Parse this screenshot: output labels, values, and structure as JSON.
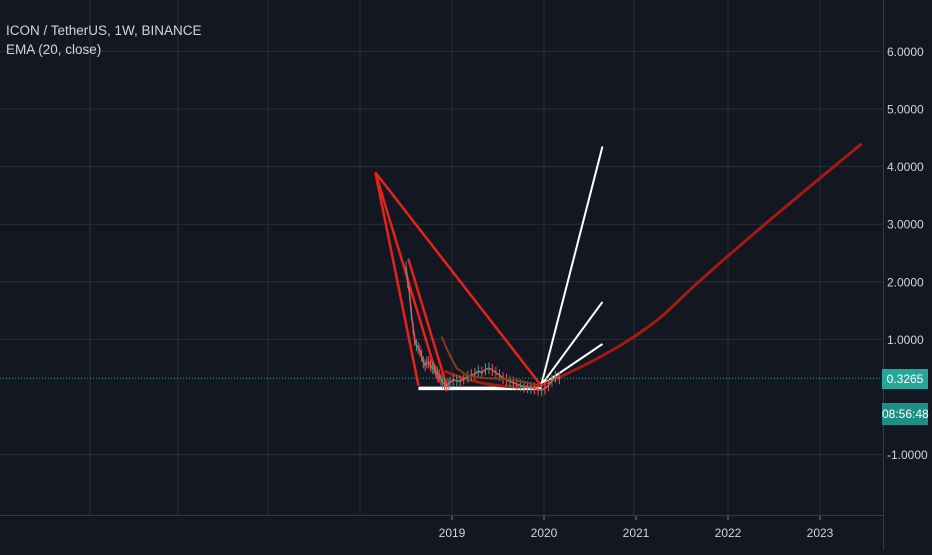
{
  "header": {
    "symbol_line": "ICON / TetherUS, 1W, BINANCE",
    "indicator_line": "EMA (20, close)"
  },
  "price_axis": {
    "current_price": "0.3265",
    "countdown": "08:56:48"
  },
  "colors": {
    "background": "#131722",
    "grid": "#2a2e39",
    "text": "#d1d4dc",
    "price_line": "#26a69a",
    "trend_red": "#e5231b",
    "curve_dark_red": "#a31b0f",
    "white_lines": "#ffffff",
    "ema": "#8a3a1c"
  },
  "chart_data": {
    "type": "line",
    "title": "ICON / TetherUS, 1W, BINANCE",
    "xlabel": "",
    "ylabel": "",
    "xlim": [
      "2017-06",
      "2023-12"
    ],
    "ylim": [
      -2.0,
      6.8
    ],
    "x_ticks": [
      "2019",
      "2020",
      "2021",
      "2022",
      "2023"
    ],
    "y_ticks": [
      "6.0000",
      "5.0000",
      "4.0000",
      "3.0000",
      "2.0000",
      "1.0000",
      "-1.0000"
    ],
    "grid": true,
    "price_series": {
      "name": "ICON / TetherUS",
      "points": [
        [
          "2018-07-01",
          2.25
        ],
        [
          "2018-07-08",
          2.0
        ],
        [
          "2018-07-15",
          1.8
        ],
        [
          "2018-07-22",
          1.45
        ],
        [
          "2018-07-29",
          1.2
        ],
        [
          "2018-08-05",
          1.0
        ],
        [
          "2018-08-12",
          0.9
        ],
        [
          "2018-08-19",
          0.85
        ],
        [
          "2018-08-26",
          0.8
        ],
        [
          "2018-09-02",
          0.72
        ],
        [
          "2018-09-09",
          0.6
        ],
        [
          "2018-09-16",
          0.55
        ],
        [
          "2018-09-23",
          0.6
        ],
        [
          "2018-09-30",
          0.6
        ],
        [
          "2018-10-07",
          0.55
        ],
        [
          "2018-10-14",
          0.5
        ],
        [
          "2018-10-21",
          0.5
        ],
        [
          "2018-10-28",
          0.45
        ],
        [
          "2018-11-04",
          0.42
        ],
        [
          "2018-11-11",
          0.38
        ],
        [
          "2018-11-18",
          0.3
        ],
        [
          "2018-11-25",
          0.25
        ],
        [
          "2018-12-02",
          0.22
        ],
        [
          "2018-12-09",
          0.2
        ],
        [
          "2018-12-16",
          0.22
        ],
        [
          "2018-12-23",
          0.25
        ],
        [
          "2019-01-06",
          0.3
        ],
        [
          "2019-01-20",
          0.28
        ],
        [
          "2019-02-03",
          0.27
        ],
        [
          "2019-02-17",
          0.32
        ],
        [
          "2019-03-03",
          0.35
        ],
        [
          "2019-03-17",
          0.38
        ],
        [
          "2019-03-31",
          0.4
        ],
        [
          "2019-04-14",
          0.45
        ],
        [
          "2019-04-28",
          0.42
        ],
        [
          "2019-05-12",
          0.48
        ],
        [
          "2019-05-26",
          0.5
        ],
        [
          "2019-06-09",
          0.47
        ],
        [
          "2019-06-23",
          0.42
        ],
        [
          "2019-07-07",
          0.38
        ],
        [
          "2019-07-21",
          0.33
        ],
        [
          "2019-08-04",
          0.3
        ],
        [
          "2019-08-18",
          0.27
        ],
        [
          "2019-09-01",
          0.25
        ],
        [
          "2019-09-15",
          0.22
        ],
        [
          "2019-09-29",
          0.2
        ],
        [
          "2019-10-13",
          0.18
        ],
        [
          "2019-10-27",
          0.17
        ],
        [
          "2019-11-10",
          0.16
        ],
        [
          "2019-11-24",
          0.15
        ],
        [
          "2019-12-08",
          0.13
        ],
        [
          "2019-12-22",
          0.12
        ],
        [
          "2020-01-05",
          0.15
        ],
        [
          "2020-01-19",
          0.2
        ],
        [
          "2020-02-02",
          0.28
        ],
        [
          "2020-02-16",
          0.35
        ],
        [
          "2020-03-01",
          0.3265
        ]
      ]
    },
    "ema_series": {
      "name": "EMA (20, close)",
      "points": [
        [
          "2018-11-20",
          1.05
        ],
        [
          "2018-12-20",
          0.75
        ],
        [
          "2019-01-20",
          0.5
        ],
        [
          "2019-03-01",
          0.37
        ],
        [
          "2019-05-01",
          0.33
        ],
        [
          "2019-07-01",
          0.32
        ],
        [
          "2019-09-01",
          0.3
        ],
        [
          "2019-11-01",
          0.24
        ],
        [
          "2019-12-20",
          0.2
        ]
      ]
    },
    "current_price": 0.3265,
    "drawings": [
      {
        "kind": "trend_line",
        "color": "red",
        "points": [
          [
            "2018-03-01",
            3.9
          ],
          [
            "2018-08-20",
            0.2
          ]
        ]
      },
      {
        "kind": "trend_line",
        "color": "red",
        "points": [
          [
            "2018-03-01",
            3.9
          ],
          [
            "2018-11-10",
            0.25
          ]
        ]
      },
      {
        "kind": "trend_line",
        "color": "red",
        "points": [
          [
            "2018-03-01",
            3.9
          ],
          [
            "2019-12-20",
            0.2
          ]
        ]
      },
      {
        "kind": "trend_line",
        "color": "red",
        "points": [
          [
            "2018-07-10",
            2.4
          ],
          [
            "2018-12-10",
            0.2
          ]
        ]
      },
      {
        "kind": "trend_line",
        "color": "white",
        "points": [
          [
            "2018-08-20",
            0.15
          ],
          [
            "2019-12-20",
            0.15
          ]
        ]
      },
      {
        "kind": "trend_line",
        "color": "white",
        "points": [
          [
            "2019-12-20",
            0.2
          ],
          [
            "2020-08-20",
            4.35
          ]
        ]
      },
      {
        "kind": "trend_line",
        "color": "white",
        "points": [
          [
            "2019-12-20",
            0.2
          ],
          [
            "2020-08-20",
            1.65
          ]
        ]
      },
      {
        "kind": "trend_line",
        "color": "white",
        "points": [
          [
            "2019-12-20",
            0.2
          ],
          [
            "2020-08-20",
            0.92
          ]
        ]
      },
      {
        "kind": "curve",
        "color": "dark_red",
        "points": [
          [
            "2018-12-01",
            0.45
          ],
          [
            "2019-12-20",
            0.2
          ],
          [
            "2021-06-01",
            1.6
          ],
          [
            "2023-06-15",
            4.4
          ]
        ]
      }
    ]
  }
}
